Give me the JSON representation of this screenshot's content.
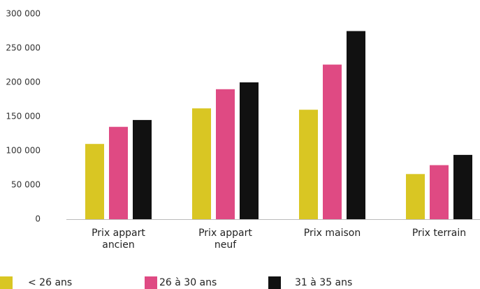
{
  "chart_data": {
    "type": "bar",
    "categories": [
      "Prix appart ancien",
      "Prix appart neuf",
      "Prix maison",
      "Prix terrain"
    ],
    "series": [
      {
        "name": "< 26 ans",
        "color": "#d9c623",
        "values": [
          110000,
          162000,
          160000,
          66000
        ]
      },
      {
        "name": "26 à 30 ans",
        "color": "#df4a83",
        "values": [
          135000,
          190000,
          226000,
          79000
        ]
      },
      {
        "name": "31 à 35 ans",
        "color": "#111111",
        "values": [
          145000,
          200000,
          275000,
          94000
        ]
      }
    ],
    "ylim": [
      0,
      300000
    ],
    "yticks": [
      {
        "value": 0,
        "label": "0"
      },
      {
        "value": 50000,
        "label": "50 000"
      },
      {
        "value": 100000,
        "label": "100 000"
      },
      {
        "value": 150000,
        "label": "150 000"
      },
      {
        "value": 200000,
        "label": "200 000"
      },
      {
        "value": 250000,
        "label": "250 000"
      },
      {
        "value": 300000,
        "label": "300 000"
      }
    ],
    "grid": false,
    "legend": "bottom"
  }
}
